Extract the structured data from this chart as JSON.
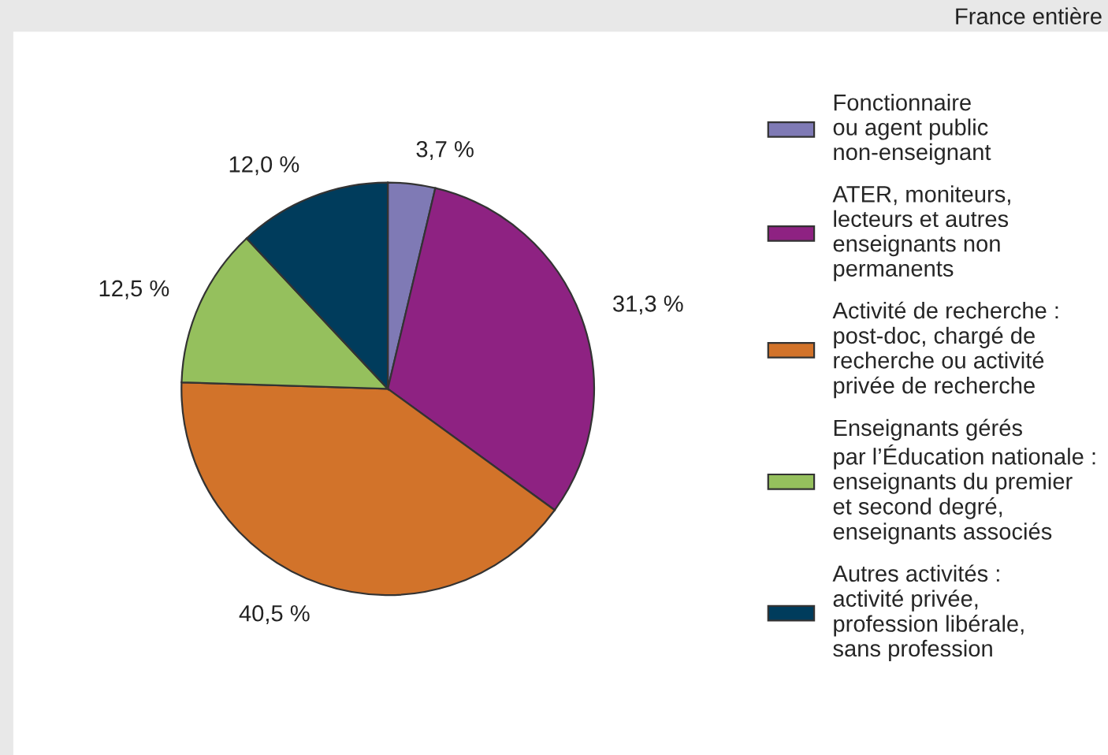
{
  "chart_data": {
    "type": "pie",
    "subtitle": "France entière",
    "categories": [
      "Fonctionnaire\nou agent public\nnon-enseignant",
      "ATER, moniteurs,\nlecteurs et autres\nenseignants non\npermanents",
      "Activité de recherche :\npost-doc, chargé de\nrecherche ou activité\nprivée de recherche",
      "Enseignants gérés\npar l’Éducation nationale :\nenseignants du premier\net second degré,\nenseignants associés",
      "Autres activités :\nactivité privée,\nprofession libérale,\nsans profession"
    ],
    "values": [
      3.7,
      31.3,
      40.5,
      12.5,
      12.0
    ],
    "value_labels": [
      "3,7 %",
      "31,3 %",
      "40,5 %",
      "12,5 %",
      "12,0 %"
    ],
    "colors": [
      "#7f7ab5",
      "#8e2282",
      "#d2732a",
      "#95c05d",
      "#003c5c"
    ],
    "legend": "right"
  }
}
